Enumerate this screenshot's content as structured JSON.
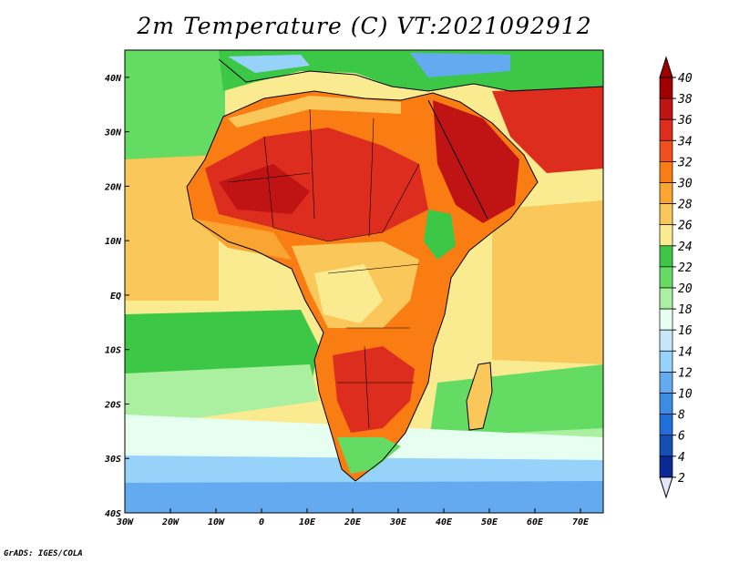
{
  "title": "2m Temperature (C) VT:2021092912",
  "credit": "GrADS: IGES/COLA",
  "map": {
    "lon_range": [
      -30,
      75
    ],
    "lat_range": [
      -40,
      45
    ],
    "lon_ticks": [
      {
        "value": -30,
        "label": "30W"
      },
      {
        "value": -20,
        "label": "20W"
      },
      {
        "value": -10,
        "label": "10W"
      },
      {
        "value": 0,
        "label": "0"
      },
      {
        "value": 10,
        "label": "10E"
      },
      {
        "value": 20,
        "label": "20E"
      },
      {
        "value": 30,
        "label": "30E"
      },
      {
        "value": 40,
        "label": "40E"
      },
      {
        "value": 50,
        "label": "50E"
      },
      {
        "value": 60,
        "label": "60E"
      },
      {
        "value": 70,
        "label": "70E"
      }
    ],
    "lat_ticks": [
      {
        "value": 40,
        "label": "40N"
      },
      {
        "value": 30,
        "label": "30N"
      },
      {
        "value": 20,
        "label": "20N"
      },
      {
        "value": 10,
        "label": "10N"
      },
      {
        "value": 0,
        "label": "EQ"
      },
      {
        "value": -10,
        "label": "10S"
      },
      {
        "value": -20,
        "label": "20S"
      },
      {
        "value": -30,
        "label": "30S"
      },
      {
        "value": -40,
        "label": "40S"
      }
    ]
  },
  "colorbar": {
    "levels": [
      {
        "label": "40",
        "color": "#a00000"
      },
      {
        "label": "38",
        "color": "#c01414"
      },
      {
        "label": "36",
        "color": "#dc2d1e"
      },
      {
        "label": "34",
        "color": "#f0501e"
      },
      {
        "label": "32",
        "color": "#fa7d14"
      },
      {
        "label": "30",
        "color": "#faa532"
      },
      {
        "label": "28",
        "color": "#fac85a"
      },
      {
        "label": "26",
        "color": "#faeb91"
      },
      {
        "label": "24",
        "color": "#3cc846"
      },
      {
        "label": "22",
        "color": "#64dc64"
      },
      {
        "label": "20",
        "color": "#aaf0a0"
      },
      {
        "label": "18",
        "color": "#e6fff0"
      },
      {
        "label": "16",
        "color": "#c8e6fa"
      },
      {
        "label": "14",
        "color": "#96d2fa"
      },
      {
        "label": "12",
        "color": "#64aaf0"
      },
      {
        "label": "10",
        "color": "#3c8ce6"
      },
      {
        "label": "8",
        "color": "#1e6edc"
      },
      {
        "label": "6",
        "color": "#1450b4"
      },
      {
        "label": "4",
        "color": "#0a2896"
      },
      {
        "label": "2",
        "color": "#e6e6fa"
      }
    ]
  }
}
